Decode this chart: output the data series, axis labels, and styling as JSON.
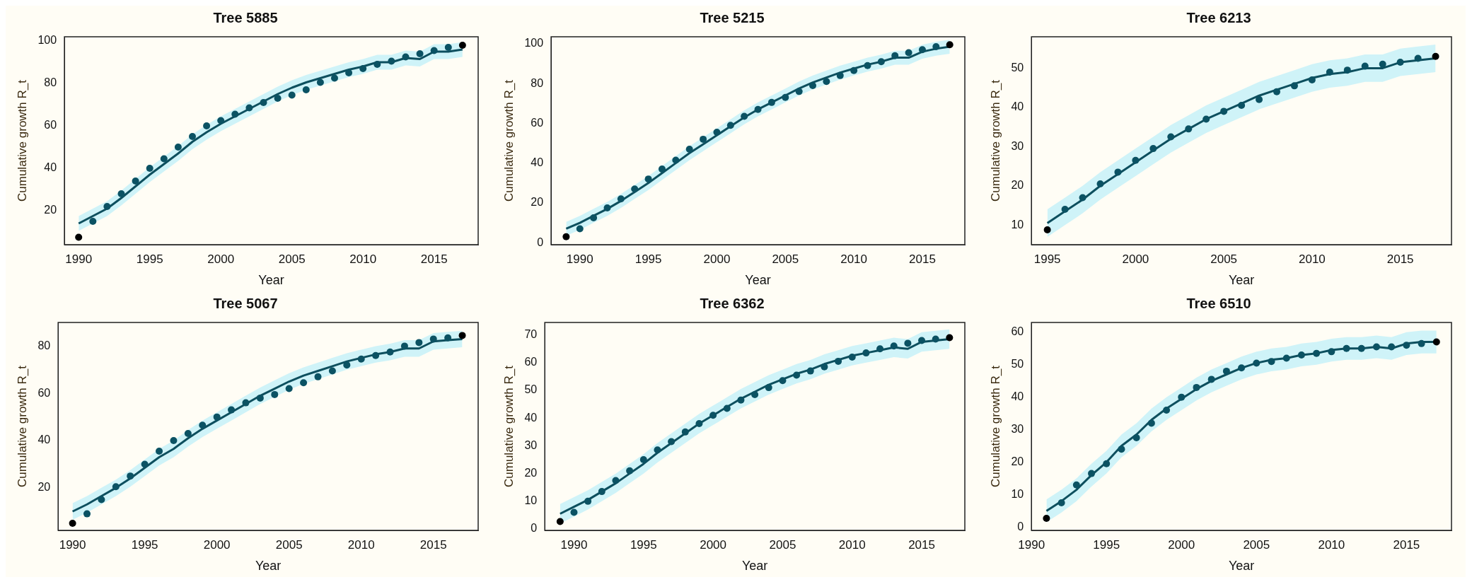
{
  "chart_data": [
    {
      "type": "line",
      "title": "Tree 5885",
      "xlabel": "Year",
      "ylabel": "Cumulative growth R_t",
      "grid": false,
      "xlim": [
        1989,
        2018.1
      ],
      "xticks": [
        1990,
        1995,
        2000,
        2005,
        2010,
        2015
      ],
      "ylim": [
        4,
        102
      ],
      "yticks": [
        20,
        40,
        60,
        80,
        100
      ],
      "x": [
        1990,
        1991,
        1992,
        1993,
        1994,
        1995,
        1996,
        1997,
        1998,
        1999,
        2000,
        2001,
        2002,
        2003,
        2004,
        2005,
        2006,
        2007,
        2008,
        2009,
        2010,
        2011,
        2012,
        2013,
        2014,
        2015,
        2016,
        2017
      ],
      "series": [
        {
          "type": "line",
          "color": "#0d4f5e",
          "values": [
            14,
            17.5,
            21,
            26,
            31.5,
            37,
            42,
            47,
            52.5,
            57,
            61,
            64.5,
            68,
            71.5,
            75,
            78,
            80.5,
            82.5,
            84.5,
            86.5,
            88,
            90,
            90,
            92,
            91.5,
            95,
            95,
            96
          ],
          "lower": [
            10.5,
            14,
            17.5,
            22.5,
            28,
            33.5,
            38.5,
            43.5,
            49,
            53.5,
            57.5,
            61,
            64.5,
            68,
            71.5,
            74.5,
            77,
            79,
            81,
            83,
            84.5,
            86.5,
            86.5,
            88.5,
            88,
            91.5,
            91.5,
            92.5
          ],
          "upper": [
            17.5,
            21,
            24.5,
            29.5,
            35,
            40.5,
            45.5,
            50.5,
            56,
            60.5,
            64.5,
            68,
            71.5,
            75,
            78.5,
            81.5,
            84,
            86,
            88,
            90,
            91.5,
            93.5,
            93.5,
            95.5,
            95,
            98.5,
            98.5,
            99.5
          ]
        },
        {
          "type": "scatter",
          "marker": "circle",
          "color": "#0b5263",
          "x": [
            1991,
            1992,
            1993,
            1994,
            1995,
            1996,
            1997,
            1998,
            1999,
            2000,
            2001,
            2002,
            2003,
            2004,
            2005,
            2006,
            2007,
            2008,
            2009,
            2010,
            2011,
            2012,
            2013,
            2014,
            2015,
            2016
          ],
          "values": [
            15,
            22,
            28,
            34,
            40,
            44.5,
            50,
            55,
            60,
            62.5,
            65.5,
            68.5,
            71,
            73,
            74.5,
            77,
            80.5,
            82.5,
            85,
            87,
            89,
            90.5,
            92.5,
            94,
            95.5,
            97
          ]
        },
        {
          "type": "scatter",
          "marker": "circle",
          "color": "#000000",
          "x": [
            1990,
            2017
          ],
          "values": [
            7.5,
            98
          ]
        }
      ]
    },
    {
      "type": "line",
      "title": "Tree 5215",
      "xlabel": "Year",
      "ylabel": "Cumulative growth R_t",
      "grid": false,
      "xlim": [
        1987.9,
        2018.1
      ],
      "xticks": [
        1990,
        1995,
        2000,
        2005,
        2010,
        2015
      ],
      "ylim": [
        -1,
        103.5
      ],
      "yticks": [
        0,
        20,
        40,
        60,
        80,
        100
      ],
      "x": [
        1989,
        1990,
        1991,
        1992,
        1993,
        1994,
        1995,
        1996,
        1997,
        1998,
        1999,
        2000,
        2001,
        2002,
        2003,
        2004,
        2005,
        2006,
        2007,
        2008,
        2009,
        2010,
        2011,
        2012,
        2013,
        2014,
        2015,
        2016,
        2017
      ],
      "series": [
        {
          "type": "line",
          "color": "#0d4f5e",
          "values": [
            7,
            10,
            13.5,
            17,
            21,
            25.5,
            30,
            35,
            40,
            45,
            49.5,
            54,
            58.5,
            63,
            67,
            70.5,
            74,
            77.5,
            80.5,
            83,
            85.5,
            87.5,
            89.5,
            91,
            93,
            93,
            96,
            97.5,
            98.5
          ],
          "lower": [
            3.5,
            6.5,
            10,
            13.5,
            17.5,
            22,
            26.5,
            31.5,
            36.5,
            41.5,
            46,
            50.5,
            55,
            59.5,
            63.5,
            67,
            70.5,
            74,
            77,
            79.5,
            82,
            84,
            86,
            87.5,
            89.5,
            89.5,
            92.5,
            94,
            95
          ],
          "upper": [
            10.5,
            13.5,
            17,
            20.5,
            24.5,
            29,
            33.5,
            38.5,
            43.5,
            48.5,
            53,
            57.5,
            62,
            66.5,
            70.5,
            74,
            77.5,
            81,
            84,
            86.5,
            89,
            91,
            93,
            94.5,
            96.5,
            96.5,
            99.5,
            101,
            102
          ]
        },
        {
          "type": "scatter",
          "marker": "circle",
          "color": "#0b5263",
          "x": [
            1990,
            1991,
            1992,
            1993,
            1994,
            1995,
            1996,
            1997,
            1998,
            1999,
            2000,
            2001,
            2002,
            2003,
            2004,
            2005,
            2006,
            2007,
            2008,
            2009,
            2010,
            2011,
            2012,
            2013,
            2014,
            2015,
            2016
          ],
          "values": [
            7,
            12.5,
            17.5,
            22,
            27,
            32,
            37,
            41.5,
            47,
            52,
            55.5,
            59,
            63.5,
            67,
            70.5,
            73,
            76,
            79,
            81,
            84,
            86.5,
            89,
            91,
            94,
            95.5,
            97,
            98.5
          ]
        },
        {
          "type": "scatter",
          "marker": "circle",
          "color": "#000000",
          "x": [
            1989,
            2017
          ],
          "values": [
            3,
            99.5
          ]
        }
      ]
    },
    {
      "type": "line",
      "title": "Tree 6213",
      "xlabel": "Year",
      "ylabel": "Cumulative growth R_t",
      "grid": false,
      "xlim": [
        1994.1,
        2017.9
      ],
      "xticks": [
        1995,
        2000,
        2005,
        2010,
        2015
      ],
      "ylim": [
        5,
        58
      ],
      "yticks": [
        10,
        20,
        30,
        40,
        50
      ],
      "x": [
        1995,
        1996,
        1997,
        1998,
        1999,
        2000,
        2001,
        2002,
        2003,
        2004,
        2005,
        2006,
        2007,
        2008,
        2009,
        2010,
        2011,
        2012,
        2013,
        2014,
        2015,
        2016,
        2017
      ],
      "series": [
        {
          "type": "line",
          "color": "#0d4f5e",
          "values": [
            10.5,
            13.5,
            16.5,
            20,
            23,
            26,
            29,
            32,
            34.5,
            37,
            39,
            41,
            43,
            44.5,
            46,
            47.5,
            48.5,
            49,
            50,
            50,
            51.5,
            52,
            52.5
          ],
          "lower": [
            7,
            10,
            13,
            16.5,
            19.5,
            22.5,
            25.5,
            28.5,
            31,
            33.5,
            35.5,
            37.5,
            39.5,
            41,
            42.5,
            44,
            45,
            45.5,
            46.5,
            46.5,
            48,
            48.5,
            49
          ],
          "upper": [
            14,
            17,
            20,
            23.5,
            26.5,
            29.5,
            32.5,
            35.5,
            38,
            40.5,
            42.5,
            44.5,
            46.5,
            48,
            49.5,
            51,
            52,
            52.5,
            53.5,
            53.5,
            55,
            55.5,
            56
          ]
        },
        {
          "type": "scatter",
          "marker": "circle",
          "color": "#0b5263",
          "x": [
            1996,
            1997,
            1998,
            1999,
            2000,
            2001,
            2002,
            2003,
            2004,
            2005,
            2006,
            2007,
            2008,
            2009,
            2010,
            2011,
            2012,
            2013,
            2014,
            2015,
            2016
          ],
          "values": [
            14,
            17,
            20.5,
            23.5,
            26.5,
            29.5,
            32.5,
            34.5,
            37,
            39,
            40.5,
            42,
            44,
            45.5,
            47,
            49,
            49.5,
            50.5,
            51,
            51.5,
            52.5
          ]
        },
        {
          "type": "scatter",
          "marker": "circle",
          "color": "#000000",
          "x": [
            1995,
            2017
          ],
          "values": [
            8.8,
            53
          ]
        }
      ]
    },
    {
      "type": "line",
      "title": "Tree 5067",
      "xlabel": "Year",
      "ylabel": "Cumulative growth R_t",
      "grid": false,
      "xlim": [
        1989,
        2018.1
      ],
      "xticks": [
        1990,
        1995,
        2000,
        2005,
        2010,
        2015
      ],
      "ylim": [
        2,
        90
      ],
      "yticks": [
        20,
        40,
        60,
        80
      ],
      "x": [
        1990,
        1991,
        1992,
        1993,
        1994,
        1995,
        1996,
        1997,
        1998,
        1999,
        2000,
        2001,
        2002,
        2003,
        2004,
        2005,
        2006,
        2007,
        2008,
        2009,
        2010,
        2011,
        2012,
        2013,
        2014,
        2015,
        2016,
        2017
      ],
      "series": [
        {
          "type": "line",
          "color": "#0d4f5e",
          "values": [
            10,
            13,
            16.5,
            20,
            24,
            28.5,
            33,
            36.5,
            41,
            45,
            48.5,
            52,
            55.5,
            59,
            62,
            65,
            67.5,
            69.5,
            71.5,
            73.5,
            75,
            76.5,
            77.5,
            79,
            79,
            82,
            82.5,
            83
          ],
          "lower": [
            6.5,
            9.5,
            13,
            16.5,
            20.5,
            25,
            29.5,
            33,
            37.5,
            41.5,
            45,
            48.5,
            52,
            55.5,
            58.5,
            61.5,
            64,
            66,
            68,
            70,
            71.5,
            73,
            74,
            75.5,
            75.5,
            78.5,
            79,
            79.5
          ],
          "upper": [
            13.5,
            16.5,
            20,
            23.5,
            27.5,
            32,
            36.5,
            40,
            44.5,
            48.5,
            52,
            55.5,
            59,
            62.5,
            65.5,
            68.5,
            71,
            73,
            75,
            77,
            78.5,
            80,
            81,
            82.5,
            82.5,
            85.5,
            86,
            86.5
          ]
        },
        {
          "type": "scatter",
          "marker": "circle",
          "color": "#0b5263",
          "x": [
            1991,
            1992,
            1993,
            1994,
            1995,
            1996,
            1997,
            1998,
            1999,
            2000,
            2001,
            2002,
            2003,
            2004,
            2005,
            2006,
            2007,
            2008,
            2009,
            2010,
            2011,
            2012,
            2013,
            2014,
            2015,
            2016
          ],
          "values": [
            9,
            15,
            20.5,
            25,
            30,
            35.5,
            40,
            43,
            46.5,
            50,
            53,
            56,
            58,
            59.5,
            62,
            64.5,
            67,
            69.5,
            72,
            74.5,
            76,
            77.5,
            80,
            81.5,
            83,
            83.5
          ]
        },
        {
          "type": "scatter",
          "marker": "circle",
          "color": "#000000",
          "x": [
            1990,
            2017
          ],
          "values": [
            5,
            84.5
          ]
        }
      ]
    },
    {
      "type": "line",
      "title": "Tree 6362",
      "xlabel": "Year",
      "ylabel": "Cumulative growth R_t",
      "grid": false,
      "xlim": [
        1987.9,
        2018.1
      ],
      "xticks": [
        1990,
        1995,
        2000,
        2005,
        2010,
        2015
      ],
      "ylim": [
        -0.5,
        74.5
      ],
      "yticks": [
        0,
        10,
        20,
        30,
        40,
        50,
        60,
        70
      ],
      "x": [
        1989,
        1990,
        1991,
        1992,
        1993,
        1994,
        1995,
        1996,
        1997,
        1998,
        1999,
        2000,
        2001,
        2002,
        2003,
        2004,
        2005,
        2006,
        2007,
        2008,
        2009,
        2010,
        2011,
        2012,
        2013,
        2014,
        2015,
        2016,
        2017
      ],
      "series": [
        {
          "type": "line",
          "color": "#0d4f5e",
          "values": [
            5.5,
            8,
            10.5,
            13.5,
            16.5,
            20,
            23.5,
            27.5,
            31,
            34.5,
            38,
            41,
            44,
            47,
            49.5,
            52,
            54,
            56,
            57.5,
            59.5,
            61,
            62.5,
            63.5,
            64.5,
            65.5,
            65,
            67.5,
            68,
            68.5
          ],
          "lower": [
            2,
            4.5,
            7,
            10,
            13,
            16.5,
            20,
            24,
            27.5,
            31,
            34.5,
            37.5,
            40.5,
            43.5,
            46,
            48.5,
            50.5,
            52.5,
            54,
            56,
            57.5,
            59,
            60,
            61,
            62,
            61.5,
            64,
            64.5,
            65
          ],
          "upper": [
            9,
            11.5,
            14,
            17,
            20,
            23.5,
            27,
            31,
            34.5,
            38,
            41.5,
            44.5,
            47.5,
            50.5,
            53,
            55.5,
            57.5,
            59.5,
            61,
            63,
            64.5,
            66,
            67,
            68,
            69,
            68.5,
            71,
            71.5,
            72
          ]
        },
        {
          "type": "scatter",
          "marker": "circle",
          "color": "#0b5263",
          "x": [
            1990,
            1991,
            1992,
            1993,
            1994,
            1995,
            1996,
            1997,
            1998,
            1999,
            2000,
            2001,
            2002,
            2003,
            2004,
            2005,
            2006,
            2007,
            2008,
            2009,
            2010,
            2011,
            2012,
            2013,
            2014,
            2015,
            2016
          ],
          "values": [
            6,
            10,
            13.5,
            17.5,
            21,
            25,
            28.5,
            31.5,
            35,
            38,
            41,
            43.5,
            46.5,
            48.5,
            51,
            53.5,
            55.5,
            57,
            58.5,
            60.5,
            62,
            63.5,
            65,
            66,
            67,
            68,
            68.5
          ]
        },
        {
          "type": "scatter",
          "marker": "circle",
          "color": "#000000",
          "x": [
            1989,
            2017
          ],
          "values": [
            2.7,
            69
          ]
        }
      ]
    },
    {
      "type": "line",
      "title": "Tree 6510",
      "xlabel": "Year",
      "ylabel": "Cumulative growth R_t",
      "grid": false,
      "xlim": [
        1990,
        2018
      ],
      "xticks": [
        1990,
        1995,
        2000,
        2005,
        2010,
        2015
      ],
      "ylim": [
        -1,
        63
      ],
      "yticks": [
        0,
        10,
        20,
        30,
        40,
        50,
        60
      ],
      "x": [
        1991,
        1992,
        1993,
        1994,
        1995,
        1996,
        1997,
        1998,
        1999,
        2000,
        2001,
        2002,
        2003,
        2004,
        2005,
        2006,
        2007,
        2008,
        2009,
        2010,
        2011,
        2012,
        2013,
        2014,
        2015,
        2016,
        2017
      ],
      "series": [
        {
          "type": "line",
          "color": "#0d4f5e",
          "values": [
            5,
            8,
            11.5,
            16,
            20,
            25,
            28.5,
            33,
            36.5,
            39.5,
            42.5,
            45,
            47,
            49,
            50.5,
            51.5,
            52,
            53,
            53.5,
            54.5,
            55,
            55,
            55.5,
            55,
            56.5,
            57,
            57
          ],
          "lower": [
            1.5,
            4.5,
            8,
            12.5,
            16.5,
            21.5,
            25,
            29.5,
            33,
            36,
            39,
            41.5,
            43.5,
            45.5,
            47,
            48,
            48.5,
            49.5,
            50,
            51,
            51.5,
            51.5,
            52,
            51.5,
            53,
            53.5,
            53.5
          ],
          "upper": [
            8.5,
            11.5,
            15,
            19.5,
            23.5,
            28.5,
            32,
            36.5,
            40,
            43,
            46,
            48.5,
            50.5,
            52.5,
            54,
            55,
            55.5,
            56.5,
            57,
            58,
            58.5,
            58.5,
            59,
            58.5,
            60,
            60.5,
            60.5
          ]
        },
        {
          "type": "scatter",
          "marker": "circle",
          "color": "#0b5263",
          "x": [
            1992,
            1993,
            1994,
            1995,
            1996,
            1997,
            1998,
            1999,
            2000,
            2001,
            2002,
            2003,
            2004,
            2005,
            2006,
            2007,
            2008,
            2009,
            2010,
            2011,
            2012,
            2013,
            2014,
            2015,
            2016
          ],
          "values": [
            7.5,
            13,
            16.5,
            19.5,
            24,
            27.5,
            32,
            36,
            40,
            43,
            45.5,
            48,
            49,
            50.5,
            51,
            52,
            53,
            53.5,
            54,
            55,
            55,
            55.5,
            55.5,
            56,
            56.5
          ]
        },
        {
          "type": "scatter",
          "marker": "circle",
          "color": "#000000",
          "x": [
            1991,
            2017
          ],
          "values": [
            2.7,
            57
          ]
        }
      ]
    }
  ]
}
